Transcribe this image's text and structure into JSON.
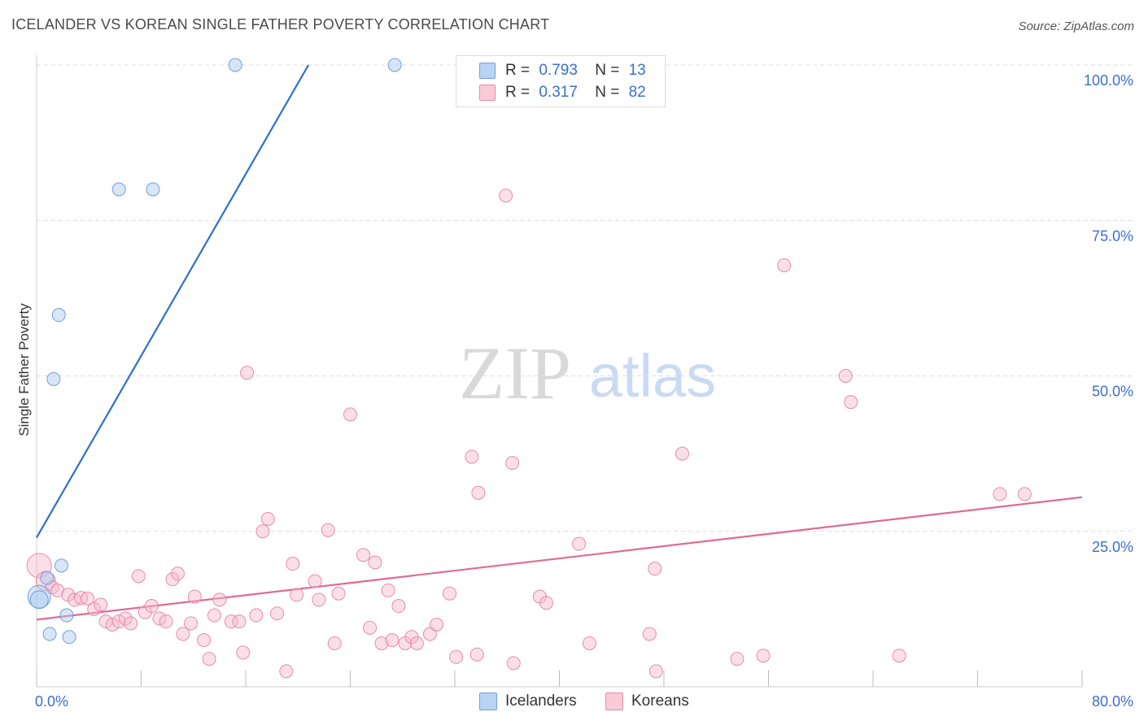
{
  "title": "ICELANDER VS KOREAN SINGLE FATHER POVERTY CORRELATION CHART",
  "source": "Source: ZipAtlas.com",
  "watermark": {
    "zip": "ZIP",
    "atlas": "atlas"
  },
  "legend_top": [
    {
      "r_label": "R =",
      "r_value": "0.793",
      "n_label": "N =",
      "n_value": "13"
    },
    {
      "r_label": "R =",
      "r_value": "0.317",
      "n_label": "N =",
      "n_value": "82"
    }
  ],
  "legend_bottom": [
    "Icelanders",
    "Koreans"
  ],
  "colors": {
    "icelanders_fill": "#a8c8f0",
    "icelanders_stroke": "#6f9fdc",
    "icelanders_line": "#2f6fcf",
    "koreans_fill": "#f7b9cc",
    "koreans_stroke": "#e88aa8",
    "koreans_line": "#e06a94",
    "tick_label": "#3a6fcf",
    "grid": "#dddddd"
  },
  "chart_data": {
    "type": "scatter",
    "title": "ICELANDER VS KOREAN SINGLE FATHER POVERTY CORRELATION CHART",
    "xlabel": "",
    "ylabel": "Single Father Poverty",
    "xlim": [
      0,
      80
    ],
    "ylim": [
      0,
      105
    ],
    "x_tick_labels": [
      "0.0%",
      "80.0%"
    ],
    "y_ticks": [
      25,
      50,
      75,
      100
    ],
    "y_tick_labels": [
      "25.0%",
      "50.0%",
      "75.0%",
      "100.0%"
    ],
    "grid": true,
    "legend_position": "top-center",
    "series": [
      {
        "name": "Icelanders",
        "points": [
          [
            0.2,
            14.5
          ],
          [
            0.2,
            14.0
          ],
          [
            0.8,
            17.5
          ],
          [
            1.0,
            8.5
          ],
          [
            1.3,
            49.5
          ],
          [
            1.7,
            59.8
          ],
          [
            1.9,
            19.5
          ],
          [
            2.3,
            11.5
          ],
          [
            2.5,
            8.0
          ],
          [
            6.3,
            80.0
          ],
          [
            8.9,
            80.0
          ],
          [
            15.2,
            100.0
          ],
          [
            27.4,
            100.0
          ]
        ],
        "trend": {
          "x": [
            0,
            20.8
          ],
          "y": [
            24.0,
            100.0
          ]
        }
      },
      {
        "name": "Koreans",
        "points": [
          [
            0.2,
            19.5
          ],
          [
            0.7,
            17.0
          ],
          [
            1.2,
            16.0
          ],
          [
            1.6,
            15.5
          ],
          [
            2.4,
            14.8
          ],
          [
            2.9,
            14.0
          ],
          [
            3.4,
            14.3
          ],
          [
            3.9,
            14.2
          ],
          [
            4.4,
            12.5
          ],
          [
            4.9,
            13.2
          ],
          [
            5.3,
            10.5
          ],
          [
            5.8,
            10.0
          ],
          [
            6.3,
            10.5
          ],
          [
            6.8,
            11.0
          ],
          [
            7.2,
            10.2
          ],
          [
            7.8,
            17.8
          ],
          [
            8.3,
            12.0
          ],
          [
            8.8,
            13.0
          ],
          [
            9.4,
            11.0
          ],
          [
            9.9,
            10.5
          ],
          [
            10.4,
            17.3
          ],
          [
            10.8,
            18.2
          ],
          [
            11.2,
            8.5
          ],
          [
            11.8,
            10.2
          ],
          [
            12.1,
            14.5
          ],
          [
            12.8,
            7.5
          ],
          [
            13.2,
            4.5
          ],
          [
            13.6,
            11.5
          ],
          [
            14.0,
            14.0
          ],
          [
            14.9,
            10.5
          ],
          [
            15.5,
            10.5
          ],
          [
            15.8,
            5.5
          ],
          [
            16.1,
            50.5
          ],
          [
            16.8,
            11.5
          ],
          [
            17.3,
            25.0
          ],
          [
            17.7,
            27.0
          ],
          [
            18.4,
            11.8
          ],
          [
            19.1,
            2.5
          ],
          [
            19.6,
            19.8
          ],
          [
            19.9,
            14.8
          ],
          [
            21.3,
            17.0
          ],
          [
            21.6,
            14.0
          ],
          [
            22.3,
            25.2
          ],
          [
            22.8,
            7.0
          ],
          [
            23.1,
            15.0
          ],
          [
            24.0,
            43.8
          ],
          [
            25.0,
            21.2
          ],
          [
            25.5,
            9.5
          ],
          [
            25.9,
            20.0
          ],
          [
            26.4,
            7.0
          ],
          [
            26.9,
            15.5
          ],
          [
            27.2,
            7.5
          ],
          [
            27.7,
            13.0
          ],
          [
            28.2,
            7.0
          ],
          [
            28.7,
            8.0
          ],
          [
            29.1,
            7.0
          ],
          [
            30.1,
            8.5
          ],
          [
            30.6,
            10.0
          ],
          [
            31.6,
            15.0
          ],
          [
            32.1,
            4.8
          ],
          [
            33.7,
            5.2
          ],
          [
            33.3,
            37.0
          ],
          [
            33.8,
            31.2
          ],
          [
            36.4,
            36.0
          ],
          [
            36.5,
            3.8
          ],
          [
            35.9,
            79.0
          ],
          [
            38.5,
            14.5
          ],
          [
            39.0,
            13.5
          ],
          [
            41.5,
            23.0
          ],
          [
            42.3,
            7.0
          ],
          [
            46.9,
            8.5
          ],
          [
            47.3,
            19.0
          ],
          [
            47.4,
            2.5
          ],
          [
            49.4,
            37.5
          ],
          [
            53.6,
            4.5
          ],
          [
            55.6,
            5.0
          ],
          [
            57.2,
            67.8
          ],
          [
            61.9,
            50.0
          ],
          [
            62.3,
            45.8
          ],
          [
            66.0,
            5.0
          ],
          [
            73.7,
            31.0
          ],
          [
            75.6,
            31.0
          ]
        ],
        "trend": {
          "x": [
            0,
            80
          ],
          "y": [
            10.8,
            30.5
          ]
        }
      }
    ]
  }
}
